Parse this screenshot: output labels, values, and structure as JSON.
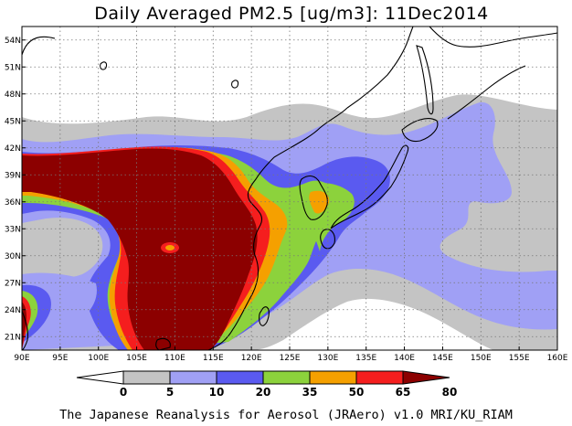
{
  "title": "Daily Averaged PM2.5 [ug/m3]: 11Dec2014",
  "footer": "The Japanese Reanalysis for Aerosol (JRAero) v1.0 MRI/KU_RIAM",
  "map": {
    "lon_range": [
      90,
      160
    ],
    "lat_range": [
      19.5,
      55.5
    ],
    "lon_ticks": [
      "90E",
      "95E",
      "100E",
      "105E",
      "110E",
      "115E",
      "120E",
      "125E",
      "130E",
      "135E",
      "140E",
      "145E",
      "150E",
      "155E",
      "160E"
    ],
    "lon_values": [
      90,
      95,
      100,
      105,
      110,
      115,
      120,
      125,
      130,
      135,
      140,
      145,
      150,
      155,
      160
    ],
    "lat_ticks": [
      "21N",
      "24N",
      "27N",
      "30N",
      "33N",
      "36N",
      "39N",
      "42N",
      "45N",
      "48N",
      "51N",
      "54N"
    ],
    "lat_values": [
      21,
      24,
      27,
      30,
      33,
      36,
      39,
      42,
      45,
      48,
      51,
      54
    ],
    "grid": "dotted",
    "colors": {
      "c5": "#c4c4c4",
      "c10": "#a0a0f5",
      "c20": "#5a5af0",
      "c35": "#8cd23c",
      "c50": "#f5a000",
      "c65": "#f51e1e",
      "c80": "#8c0000"
    }
  },
  "colorbar": {
    "labels": [
      "0",
      "5",
      "10",
      "20",
      "35",
      "50",
      "65",
      "80"
    ],
    "colors": [
      "#ffffff",
      "#c4c4c4",
      "#a0a0f5",
      "#5a5af0",
      "#8cd23c",
      "#f5a000",
      "#f51e1e",
      "#8c0000"
    ]
  }
}
